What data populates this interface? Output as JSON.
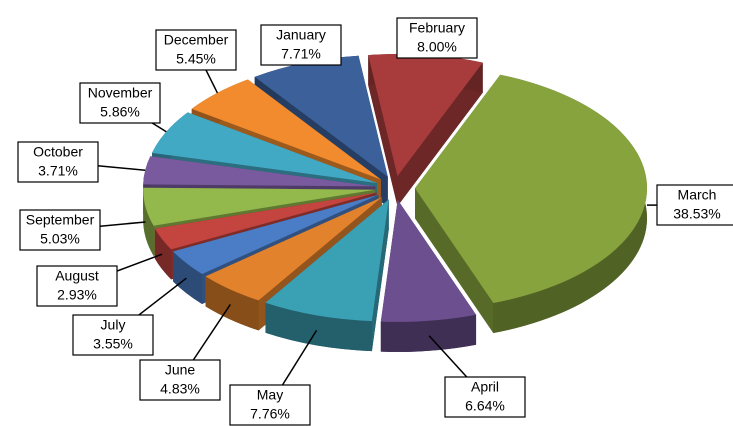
{
  "chart_data": {
    "type": "pie",
    "categories": [
      "January",
      "February",
      "March",
      "April",
      "May",
      "June",
      "July",
      "August",
      "September",
      "October",
      "November",
      "December"
    ],
    "values": [
      7.71,
      8.0,
      38.53,
      6.64,
      7.76,
      4.83,
      3.55,
      2.93,
      5.03,
      3.71,
      5.86,
      5.45
    ],
    "value_labels": [
      "7.71%",
      "8.00%",
      "38.53%",
      "6.64%",
      "7.76%",
      "4.83%",
      "3.55%",
      "2.93%",
      "5.03%",
      "3.71%",
      "5.86%",
      "5.45%"
    ],
    "colors": [
      "#3b609a",
      "#a83c3c",
      "#87a33e",
      "#6b4f8e",
      "#3aa0b4",
      "#e2822c",
      "#4a7dc5",
      "#c4443f",
      "#93b84b",
      "#7a5a9f",
      "#42a9c5",
      "#f18b2d"
    ]
  }
}
